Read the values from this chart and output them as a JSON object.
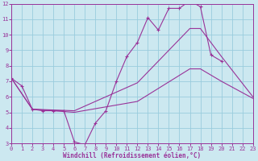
{
  "bg_color": "#cce8f0",
  "grid_color": "#99ccdd",
  "line_color": "#993399",
  "xlabel": "Windchill (Refroidissement éolien,°C)",
  "xlim": [
    0,
    23
  ],
  "ylim": [
    3,
    12
  ],
  "yticks": [
    3,
    4,
    5,
    6,
    7,
    8,
    9,
    10,
    11,
    12
  ],
  "xticks": [
    0,
    1,
    2,
    3,
    4,
    5,
    6,
    7,
    8,
    9,
    10,
    11,
    12,
    13,
    14,
    15,
    16,
    17,
    18,
    19,
    20,
    21,
    22,
    23
  ],
  "main_x": [
    0,
    1,
    2,
    3,
    4,
    5,
    6,
    7,
    8,
    9,
    10,
    11,
    12,
    13,
    14,
    15,
    16,
    17,
    18,
    19,
    20
  ],
  "main_y": [
    7.2,
    6.7,
    5.2,
    5.1,
    5.1,
    5.1,
    3.1,
    2.9,
    4.3,
    5.1,
    7.0,
    8.6,
    9.5,
    11.1,
    10.3,
    11.7,
    11.7,
    12.2,
    11.8,
    8.7,
    8.3
  ],
  "upper_x": [
    0,
    2,
    6,
    12,
    17,
    18,
    20,
    23
  ],
  "upper_y": [
    7.2,
    5.2,
    5.1,
    6.9,
    10.4,
    10.4,
    8.6,
    6.0
  ],
  "lower_x": [
    0,
    2,
    6,
    12,
    17,
    18,
    20,
    23
  ],
  "lower_y": [
    7.2,
    5.2,
    5.0,
    5.7,
    7.8,
    7.8,
    7.0,
    5.9
  ]
}
